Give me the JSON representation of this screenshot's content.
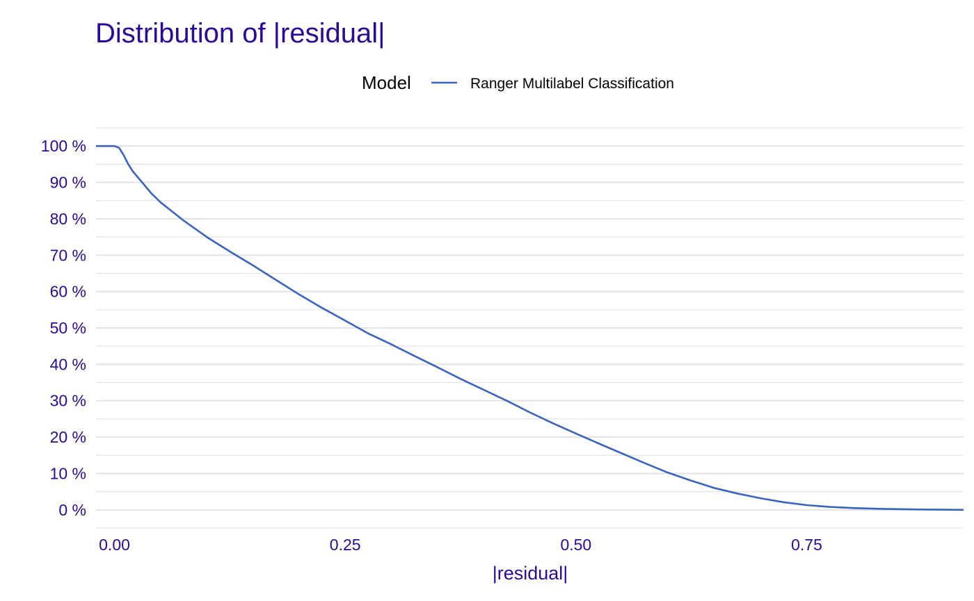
{
  "chart_data": {
    "type": "line",
    "title": "Distribution of |residual|",
    "xlabel": "|residual|",
    "ylabel": "",
    "legend": {
      "title": "Model",
      "position": "top"
    },
    "xlim": [
      -0.02,
      0.92
    ],
    "ylim": [
      -0.05,
      1.05
    ],
    "x_ticks": [
      0.0,
      0.25,
      0.5,
      0.75
    ],
    "x_tick_labels": [
      "0.00",
      "0.25",
      "0.50",
      "0.75"
    ],
    "y_ticks": [
      0,
      0.1,
      0.2,
      0.3,
      0.4,
      0.5,
      0.6,
      0.7,
      0.8,
      0.9,
      1.0
    ],
    "y_tick_labels": [
      "0 %",
      "10 %",
      "20 %",
      "30 %",
      "40 %",
      "50 %",
      "60 %",
      "70 %",
      "80 %",
      "90 %",
      "100 %"
    ],
    "grid": true,
    "series": [
      {
        "name": "Ranger Multilabel Classification",
        "color": "#3863c1",
        "x": [
          -0.02,
          0.0,
          0.005,
          0.01,
          0.015,
          0.02,
          0.03,
          0.04,
          0.05,
          0.075,
          0.1,
          0.125,
          0.15,
          0.175,
          0.2,
          0.225,
          0.25,
          0.275,
          0.3,
          0.325,
          0.35,
          0.375,
          0.4,
          0.425,
          0.45,
          0.475,
          0.5,
          0.525,
          0.55,
          0.575,
          0.6,
          0.625,
          0.65,
          0.675,
          0.7,
          0.725,
          0.75,
          0.775,
          0.8,
          0.825,
          0.85,
          0.875,
          0.9,
          0.92
        ],
        "y": [
          1.0,
          1.0,
          0.995,
          0.975,
          0.95,
          0.93,
          0.9,
          0.87,
          0.845,
          0.795,
          0.75,
          0.71,
          0.672,
          0.632,
          0.592,
          0.555,
          0.52,
          0.485,
          0.455,
          0.423,
          0.392,
          0.36,
          0.33,
          0.3,
          0.268,
          0.238,
          0.21,
          0.182,
          0.155,
          0.128,
          0.102,
          0.08,
          0.06,
          0.045,
          0.032,
          0.021,
          0.013,
          0.008,
          0.005,
          0.003,
          0.002,
          0.001,
          0.0005,
          0.0
        ]
      }
    ]
  },
  "colors": {
    "title": "#2a0a98",
    "tick_labels": "#2a0a98",
    "axis_title": "#2a0a98",
    "gridline": "#e3e3e3",
    "line": "#3863c1"
  }
}
